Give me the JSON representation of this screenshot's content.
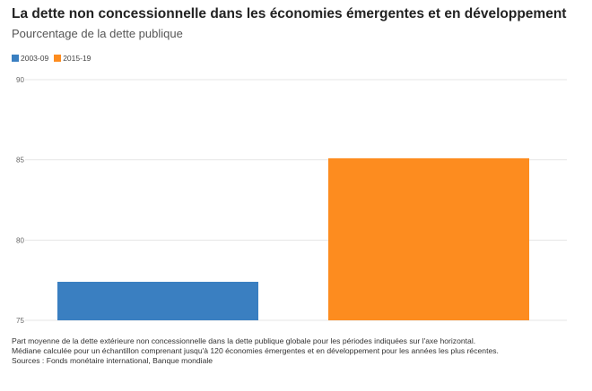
{
  "header": {
    "title": "La dette non concessionnelle dans les économies émergentes et en développement",
    "subtitle": "Pourcentage de la dette publique"
  },
  "legend": [
    {
      "label": "2003-09",
      "color": "#3a7fc1"
    },
    {
      "label": "2015-19",
      "color": "#fd8c1f"
    }
  ],
  "chart_data": {
    "type": "bar",
    "categories": [
      "2003-09",
      "2015-19"
    ],
    "values": [
      77.4,
      85.1
    ],
    "colors": [
      "#3a7fc1",
      "#fd8c1f"
    ],
    "ylim": [
      75,
      90
    ],
    "yticks": [
      75,
      80,
      85,
      90
    ],
    "grid": true,
    "legend_position": "top-left",
    "xlabel": "",
    "ylabel": ""
  },
  "notes": {
    "line1": "Part moyenne de la dette extérieure non concessionnelle dans la dette publique globale pour les périodes indiquées sur l'axe horizontal.",
    "line2": "Médiane calculée pour un échantillon comprenant jusqu'à 120 économies émergentes et en développement pour les années les plus récentes.",
    "source": "Sources : Fonds monétaire international, Banque mondiale"
  }
}
